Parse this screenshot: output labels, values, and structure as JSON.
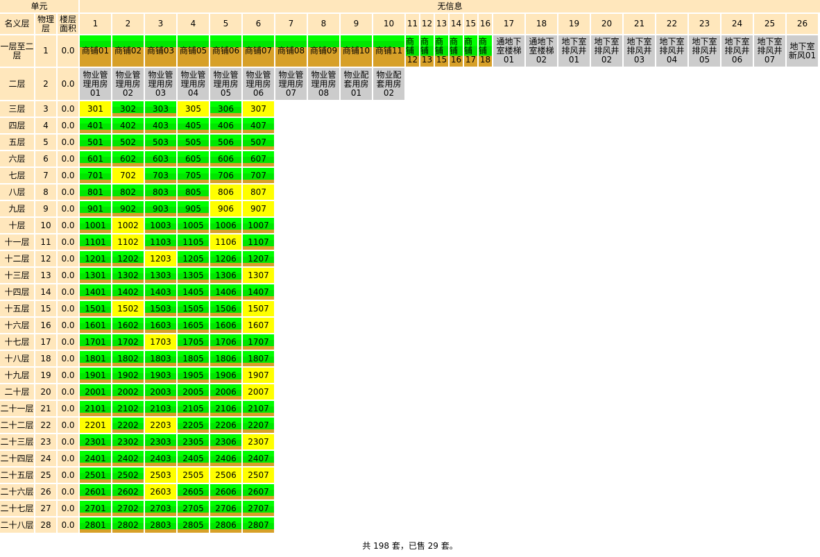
{
  "header": {
    "unit_label": "单元",
    "no_info_label": "无信息",
    "name_floor_label": "名义层",
    "physical_floor_label": "物理层",
    "floor_area_label": "楼层面积",
    "columns": [
      "1",
      "2",
      "3",
      "4",
      "5",
      "6",
      "7",
      "8",
      "9",
      "10",
      "11",
      "12",
      "13",
      "14",
      "15",
      "16",
      "17",
      "18",
      "19",
      "20",
      "21",
      "22",
      "23",
      "24",
      "25",
      "26"
    ]
  },
  "legend_colors": {
    "available_green": "#00ff00",
    "sold_yellow": "#ffff00",
    "brown_band": "#d7a028",
    "no_info_gray": "#cccccc",
    "header_bg": "#ffe7bc"
  },
  "first_floor": {
    "name": "一层至二层",
    "physical": "1",
    "area": "0.0",
    "shops": [
      "商铺01",
      "商铺02",
      "商铺03",
      "商铺05",
      "商铺06",
      "商铺07",
      "商铺08",
      "商铺09",
      "商铺10",
      "商铺11"
    ],
    "narrow_shops": [
      {
        "label": "商铺",
        "num": "12"
      },
      {
        "label": "商铺",
        "num": "13"
      },
      {
        "label": "商铺",
        "num": "15"
      },
      {
        "label": "商铺",
        "num": "16"
      },
      {
        "label": "商铺",
        "num": "17"
      },
      {
        "label": "商铺",
        "num": "18"
      }
    ],
    "gray": [
      "通地下室楼梯01",
      "通地下室楼梯02",
      "地下室排风井01",
      "地下室排风井02",
      "地下室排风井03",
      "地下室排风井04",
      "地下室排风井05",
      "地下室排风井06",
      "地下室排风井07",
      "地下室新风01"
    ]
  },
  "second_floor": {
    "name": "二层",
    "physical": "2",
    "area": "0.0",
    "gray": [
      "物业管理用房01",
      "物业管理用房02",
      "物业管理用房03",
      "物业管理用房04",
      "物业管理用房05",
      "物业管理用房06",
      "物业管理用房07",
      "物业管理用房08",
      "物业配套用房01",
      "物业配套用房02"
    ]
  },
  "floors": [
    {
      "name": "三层",
      "physical": "3",
      "area": "0.0",
      "units": [
        "301",
        "302",
        "303",
        "305",
        "306",
        "307"
      ],
      "status": [
        "y",
        "g",
        "g",
        "y",
        "g",
        "y"
      ]
    },
    {
      "name": "四层",
      "physical": "4",
      "area": "0.0",
      "units": [
        "401",
        "402",
        "403",
        "405",
        "406",
        "407"
      ],
      "status": [
        "g",
        "g",
        "g",
        "g",
        "g",
        "g"
      ]
    },
    {
      "name": "五层",
      "physical": "5",
      "area": "0.0",
      "units": [
        "501",
        "502",
        "503",
        "505",
        "506",
        "507"
      ],
      "status": [
        "g",
        "g",
        "g",
        "g",
        "g",
        "g"
      ]
    },
    {
      "name": "六层",
      "physical": "6",
      "area": "0.0",
      "units": [
        "601",
        "602",
        "603",
        "605",
        "606",
        "607"
      ],
      "status": [
        "g",
        "g",
        "g",
        "g",
        "g",
        "g"
      ]
    },
    {
      "name": "七层",
      "physical": "7",
      "area": "0.0",
      "units": [
        "701",
        "702",
        "703",
        "705",
        "706",
        "707"
      ],
      "status": [
        "g",
        "y",
        "g",
        "g",
        "g",
        "g"
      ]
    },
    {
      "name": "八层",
      "physical": "8",
      "area": "0.0",
      "units": [
        "801",
        "802",
        "803",
        "805",
        "806",
        "807"
      ],
      "status": [
        "g",
        "g",
        "g",
        "g",
        "y",
        "y"
      ]
    },
    {
      "name": "九层",
      "physical": "9",
      "area": "0.0",
      "units": [
        "901",
        "902",
        "903",
        "905",
        "906",
        "907"
      ],
      "status": [
        "g",
        "g",
        "g",
        "g",
        "y",
        "y"
      ]
    },
    {
      "name": "十层",
      "physical": "10",
      "area": "0.0",
      "units": [
        "1001",
        "1002",
        "1003",
        "1005",
        "1006",
        "1007"
      ],
      "status": [
        "g",
        "y",
        "g",
        "g",
        "g",
        "g"
      ]
    },
    {
      "name": "十一层",
      "physical": "11",
      "area": "0.0",
      "units": [
        "1101",
        "1102",
        "1103",
        "1105",
        "1106",
        "1107"
      ],
      "status": [
        "g",
        "y",
        "g",
        "g",
        "y",
        "g"
      ]
    },
    {
      "name": "十二层",
      "physical": "12",
      "area": "0.0",
      "units": [
        "1201",
        "1202",
        "1203",
        "1205",
        "1206",
        "1207"
      ],
      "status": [
        "g",
        "g",
        "y",
        "g",
        "g",
        "g"
      ]
    },
    {
      "name": "十三层",
      "physical": "13",
      "area": "0.0",
      "units": [
        "1301",
        "1302",
        "1303",
        "1305",
        "1306",
        "1307"
      ],
      "status": [
        "g",
        "g",
        "g",
        "g",
        "g",
        "y"
      ]
    },
    {
      "name": "十四层",
      "physical": "14",
      "area": "0.0",
      "units": [
        "1401",
        "1402",
        "1403",
        "1405",
        "1406",
        "1407"
      ],
      "status": [
        "g",
        "g",
        "g",
        "g",
        "g",
        "g"
      ]
    },
    {
      "name": "十五层",
      "physical": "15",
      "area": "0.0",
      "units": [
        "1501",
        "1502",
        "1503",
        "1505",
        "1506",
        "1507"
      ],
      "status": [
        "g",
        "y",
        "g",
        "g",
        "g",
        "y"
      ]
    },
    {
      "name": "十六层",
      "physical": "16",
      "area": "0.0",
      "units": [
        "1601",
        "1602",
        "1603",
        "1605",
        "1606",
        "1607"
      ],
      "status": [
        "g",
        "g",
        "g",
        "g",
        "g",
        "y"
      ]
    },
    {
      "name": "十七层",
      "physical": "17",
      "area": "0.0",
      "units": [
        "1701",
        "1702",
        "1703",
        "1705",
        "1706",
        "1707"
      ],
      "status": [
        "g",
        "g",
        "y",
        "g",
        "g",
        "g"
      ]
    },
    {
      "name": "十八层",
      "physical": "18",
      "area": "0.0",
      "units": [
        "1801",
        "1802",
        "1803",
        "1805",
        "1806",
        "1807"
      ],
      "status": [
        "g",
        "g",
        "g",
        "g",
        "g",
        "g"
      ]
    },
    {
      "name": "十九层",
      "physical": "19",
      "area": "0.0",
      "units": [
        "1901",
        "1902",
        "1903",
        "1905",
        "1906",
        "1907"
      ],
      "status": [
        "g",
        "g",
        "g",
        "g",
        "g",
        "y"
      ]
    },
    {
      "name": "二十层",
      "physical": "20",
      "area": "0.0",
      "units": [
        "2001",
        "2002",
        "2003",
        "2005",
        "2006",
        "2007"
      ],
      "status": [
        "g",
        "g",
        "g",
        "g",
        "g",
        "y"
      ]
    },
    {
      "name": "二十一层",
      "physical": "21",
      "area": "0.0",
      "units": [
        "2101",
        "2102",
        "2103",
        "2105",
        "2106",
        "2107"
      ],
      "status": [
        "g",
        "g",
        "g",
        "g",
        "g",
        "g"
      ]
    },
    {
      "name": "二十二层",
      "physical": "22",
      "area": "0.0",
      "units": [
        "2201",
        "2202",
        "2203",
        "2205",
        "2206",
        "2207"
      ],
      "status": [
        "y",
        "g",
        "y",
        "g",
        "g",
        "g"
      ]
    },
    {
      "name": "二十三层",
      "physical": "23",
      "area": "0.0",
      "units": [
        "2301",
        "2302",
        "2303",
        "2305",
        "2306",
        "2307"
      ],
      "status": [
        "g",
        "g",
        "g",
        "g",
        "g",
        "y"
      ]
    },
    {
      "name": "二十四层",
      "physical": "24",
      "area": "0.0",
      "units": [
        "2401",
        "2402",
        "2403",
        "2405",
        "2406",
        "2407"
      ],
      "status": [
        "g",
        "g",
        "g",
        "g",
        "g",
        "g"
      ]
    },
    {
      "name": "二十五层",
      "physical": "25",
      "area": "0.0",
      "units": [
        "2501",
        "2502",
        "2503",
        "2505",
        "2506",
        "2507"
      ],
      "status": [
        "g",
        "g",
        "y",
        "y",
        "y",
        "y"
      ]
    },
    {
      "name": "二十六层",
      "physical": "26",
      "area": "0.0",
      "units": [
        "2601",
        "2602",
        "2603",
        "2605",
        "2606",
        "2607"
      ],
      "status": [
        "g",
        "g",
        "y",
        "g",
        "g",
        "g"
      ]
    },
    {
      "name": "二十七层",
      "physical": "27",
      "area": "0.0",
      "units": [
        "2701",
        "2702",
        "2703",
        "2705",
        "2706",
        "2707"
      ],
      "status": [
        "g",
        "g",
        "g",
        "g",
        "g",
        "g"
      ]
    },
    {
      "name": "二十八层",
      "physical": "28",
      "area": "0.0",
      "units": [
        "2801",
        "2802",
        "2803",
        "2805",
        "2806",
        "2807"
      ],
      "status": [
        "g",
        "g",
        "g",
        "g",
        "g",
        "g"
      ]
    }
  ],
  "footer": {
    "summary": "共 198 套，已售 29 套。"
  }
}
